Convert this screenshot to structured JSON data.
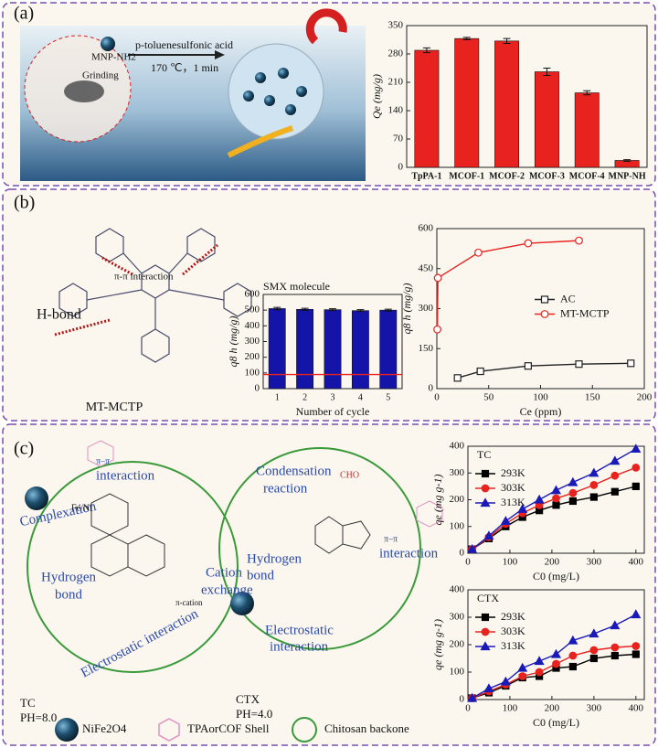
{
  "panels": {
    "a": {
      "label": "(a)",
      "amine": "MNP-NH2",
      "grinding": "Grinding",
      "reagent": "p-toluenesulfonic acid",
      "conditions": "170 ℃，1 min"
    },
    "b": {
      "label": "(b)",
      "interaction": "π-π interaction",
      "hbond": "H-bond",
      "name": "MT-MCTP"
    },
    "c": {
      "label": "(c)",
      "pi_pi": [
        "π–π",
        "interaction"
      ],
      "complexation": "Complexation",
      "fe_ni": "Fe/Ni",
      "hydrogen_bond": [
        "Hydrogen",
        "bond"
      ],
      "cation_exchange": [
        "Cation",
        "exchange"
      ],
      "pi_cation": "π-cation",
      "electrostatic": "Electrostatic interaction",
      "condensation": [
        "Condensation",
        "reaction"
      ],
      "cho": "CHO",
      "ctx_hydrogen_bond": [
        "Hydrogen",
        "bond"
      ],
      "ctx_pi_pi": [
        "π–π",
        "interaction"
      ],
      "ctx_electrostatic": [
        "Electrostatic",
        "interaction"
      ],
      "tc": "TC",
      "tc_ph": "PH=8.0",
      "ctx": "CTX",
      "ctx_ph": "PH=4.0",
      "legend_core": "NiFe2O4",
      "legend_shell": "TPAorCOF Shell",
      "legend_chitosan": "Chitosan backone"
    }
  },
  "chart_data": [
    {
      "type": "bar",
      "ylabel": "Qe (mg/g)",
      "categories": [
        "TpPA-1",
        "MCOF-1",
        "MCOF-2",
        "MCOF-3",
        "MCOF-4",
        "MNP-NH"
      ],
      "values": [
        289,
        318,
        312,
        236,
        184,
        17
      ],
      "errors": [
        6,
        3,
        6,
        9,
        5,
        2
      ],
      "color": "#e8231f",
      "ylim": [
        0,
        350
      ],
      "yticks": [
        0,
        70,
        140,
        210,
        280,
        350
      ]
    },
    {
      "type": "bar",
      "title": "SMX molecule",
      "ylabel": "q8 h (mg/g)",
      "xlabel": "Number of cycle",
      "categories": [
        "1",
        "2",
        "3",
        "4",
        "5"
      ],
      "values": [
        510,
        505,
        503,
        497,
        500
      ],
      "errors": [
        8,
        7,
        6,
        6,
        6
      ],
      "color": "#1414a8",
      "reference_line": 90,
      "reference_color": "#e8231f",
      "ylim": [
        0,
        600
      ],
      "yticks": [
        0,
        100,
        200,
        300,
        400,
        500,
        600
      ]
    },
    {
      "type": "line",
      "xlabel": "Ce (ppm)",
      "ylabel": "q8 h (mg/g)",
      "legend": "center right",
      "xlim": [
        0,
        200
      ],
      "xticks": [
        0,
        50,
        100,
        150,
        200
      ],
      "ylim": [
        0,
        600
      ],
      "yticks": [
        0,
        150,
        300,
        450,
        600
      ],
      "series": [
        {
          "name": "AC",
          "color": "#222222",
          "marker": "open-square",
          "x": [
            20,
            42,
            88,
            137,
            187
          ],
          "values": [
            40,
            65,
            85,
            92,
            95
          ]
        },
        {
          "name": "MT-MCTP",
          "color": "#e8231f",
          "marker": "open-circle",
          "x": [
            0.5,
            1,
            40,
            88,
            137
          ],
          "values": [
            222,
            415,
            510,
            545,
            555
          ]
        }
      ]
    },
    {
      "type": "line",
      "title": "TC",
      "xlabel": "C0 (mg/L)",
      "ylabel": "qe (mg g-1)",
      "legend": "upper left",
      "xlim": [
        0,
        420
      ],
      "xticks": [
        0,
        100,
        200,
        300,
        400
      ],
      "ylim": [
        0,
        400
      ],
      "yticks": [
        0,
        100,
        200,
        300,
        400
      ],
      "x": [
        10,
        50,
        90,
        130,
        170,
        210,
        250,
        300,
        350,
        400
      ],
      "series": [
        {
          "name": "293K",
          "color": "#000000",
          "marker": "square",
          "values": [
            15,
            55,
            100,
            135,
            160,
            180,
            195,
            210,
            230,
            250
          ]
        },
        {
          "name": "303K",
          "color": "#e8231f",
          "marker": "circle",
          "values": [
            15,
            60,
            110,
            150,
            180,
            205,
            225,
            255,
            290,
            320
          ]
        },
        {
          "name": "313K",
          "color": "#1a1ab8",
          "marker": "triangle",
          "values": [
            15,
            65,
            120,
            165,
            200,
            235,
            265,
            300,
            345,
            390
          ]
        }
      ]
    },
    {
      "type": "line",
      "title": "CTX",
      "xlabel": "C0 (mg/L)",
      "ylabel": "qe (mg g-1)",
      "legend": "upper left",
      "xlim": [
        0,
        420
      ],
      "xticks": [
        0,
        100,
        200,
        300,
        400
      ],
      "ylim": [
        0,
        400
      ],
      "yticks": [
        0,
        100,
        200,
        300,
        400
      ],
      "x": [
        10,
        50,
        90,
        130,
        170,
        210,
        250,
        300,
        350,
        400
      ],
      "series": [
        {
          "name": "293K",
          "color": "#000000",
          "marker": "square",
          "values": [
            5,
            25,
            50,
            80,
            85,
            115,
            120,
            150,
            160,
            165
          ]
        },
        {
          "name": "303K",
          "color": "#e8231f",
          "marker": "circle",
          "values": [
            5,
            30,
            55,
            85,
            100,
            130,
            160,
            180,
            190,
            195
          ]
        },
        {
          "name": "313K",
          "color": "#1a1ab8",
          "marker": "triangle",
          "values": [
            5,
            40,
            65,
            115,
            140,
            165,
            215,
            240,
            270,
            310
          ]
        }
      ]
    }
  ]
}
